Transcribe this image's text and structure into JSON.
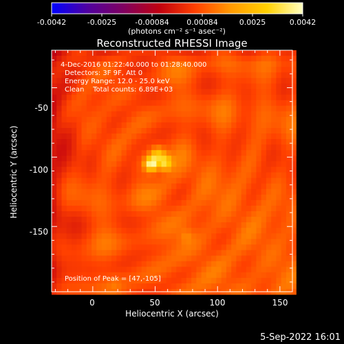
{
  "figure": {
    "title": "Reconstructed RHESSI Image",
    "footer_date": "5-Sep-2022 16:01"
  },
  "colorbar": {
    "tick_labels": [
      "-0.0042",
      "-0.0025",
      "-0.00084",
      "0.00084",
      "0.0025",
      "0.0042"
    ],
    "units_label": "(photons cm⁻² s⁻¹ asec⁻²)",
    "range": [
      -0.0042,
      0.0042
    ],
    "colors": [
      "#0000ff",
      "#5000a0",
      "#800060",
      "#c00010",
      "#ff4000",
      "#ff9a00",
      "#ffd000",
      "#ffffc0"
    ]
  },
  "annotations": {
    "lines": [
      " 4-Dec-2016 01:22:40.000 to 01:28:40.000",
      "Detectors: 3F 9F, Att 0",
      "Energy Range: 12.0 - 25.0 keV",
      "Clean    Total counts: 6.89E+03"
    ],
    "peak": "Position of Peak = [47,-105]"
  },
  "chart_data": {
    "type": "heatmap",
    "title": "Reconstructed RHESSI Image",
    "xlabel": "Heliocentric X (arcsec)",
    "ylabel": "Heliocentric Y (arcsec)",
    "xlim": [
      -33,
      160
    ],
    "ylim": [
      -197,
      -23
    ],
    "x_ticks": [
      0,
      50,
      100,
      150
    ],
    "y_ticks": [
      -50,
      -100,
      -150
    ],
    "colorscale": "RHESSI red-temperature",
    "value_range": [
      -0.0042,
      0.0042
    ],
    "pixel_size_arcsec": 4,
    "peak": {
      "x": 47,
      "y": -105,
      "value": 0.0042
    },
    "sources": [
      {
        "x": 47,
        "y": -105,
        "value": 0.0042
      },
      {
        "x": 58,
        "y": -104,
        "value": 0.0034
      },
      {
        "x": 52,
        "y": -98,
        "value": 0.0026
      },
      {
        "x": 75,
        "y": -157,
        "value": 0.0013
      },
      {
        "x": 18,
        "y": -191,
        "value": 0.0011
      }
    ],
    "background": "ripple pattern about 0.0007",
    "grid": false
  }
}
